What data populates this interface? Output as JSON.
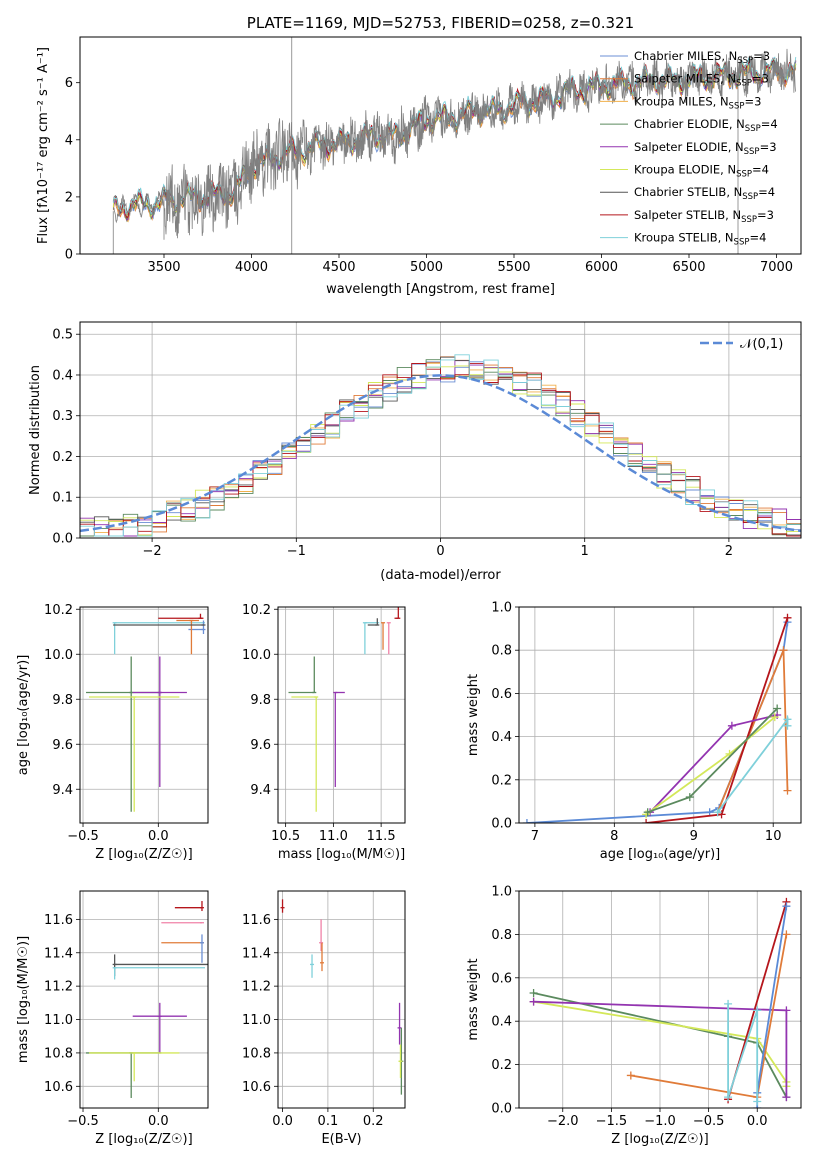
{
  "chart_data": [
    {
      "id": "spectrum",
      "type": "line",
      "title": "PLATE=1169, MJD=52753, FIBERID=0258, z=0.321",
      "xlabel": "wavelength [Angstrom, rest frame]",
      "ylabel": "Flux [f_λ10^-17 erg cm^-2 s^-1 A^-1]",
      "xlim": [
        3020,
        7140
      ],
      "ylim": [
        0,
        7.6
      ],
      "xticks": [
        3500,
        4000,
        4500,
        5000,
        5500,
        6000,
        6500,
        7000
      ],
      "yticks": [
        0,
        2,
        4,
        6
      ],
      "grid": false,
      "legend_position": "upper-right",
      "data_color": "#808080",
      "continuum": {
        "x": [
          3210,
          3300,
          3400,
          3480,
          3500,
          3600,
          3700,
          3800,
          3850,
          3900,
          3950,
          4000,
          4100,
          4200,
          4300,
          4400,
          4500,
          4600,
          4700,
          4800,
          4900,
          5000,
          5100,
          5200,
          5300,
          5400,
          5500,
          5600,
          5700,
          5800,
          5900,
          6000,
          6100,
          6200,
          6300,
          6400,
          6500,
          6600,
          6700,
          6800,
          6900,
          7000,
          7100
        ],
        "y": [
          1.5,
          1.7,
          1.75,
          1.8,
          1.85,
          1.95,
          2.0,
          2.05,
          2.15,
          2.2,
          2.6,
          3.1,
          3.3,
          3.55,
          3.65,
          3.8,
          3.9,
          4.0,
          4.15,
          4.1,
          4.3,
          4.7,
          4.75,
          4.85,
          5.05,
          5.0,
          5.2,
          5.35,
          5.4,
          5.7,
          5.75,
          5.9,
          5.95,
          6.0,
          6.1,
          6.05,
          6.15,
          6.2,
          6.25,
          6.3,
          6.35,
          6.4,
          6.45
        ]
      },
      "series": [
        {
          "name": "Chabrier MILES, N_SSP=3",
          "color": "#6b8fd4"
        },
        {
          "name": "Salpeter MILES, N_SSP=3",
          "color": "#e07b39"
        },
        {
          "name": "Kroupa MILES, N_SSP=3",
          "color": "#f1b04c"
        },
        {
          "name": "Chabrier ELODIE, N_SSP=4",
          "color": "#5b8a5e"
        },
        {
          "name": "Salpeter ELODIE, N_SSP=3",
          "color": "#9334b0"
        },
        {
          "name": "Kroupa ELODIE, N_SSP=4",
          "color": "#d4e85a"
        },
        {
          "name": "Chabrier STELIB, N_SSP=4",
          "color": "#555555"
        },
        {
          "name": "Salpeter STELIB, N_SSP=3",
          "color": "#b5161c"
        },
        {
          "name": "Kroupa STELIB, N_SSP=4",
          "color": "#7fd0da"
        }
      ]
    },
    {
      "id": "residuals",
      "type": "line",
      "xlabel": "(data-model)/error",
      "ylabel": "Normed distribution",
      "xlim": [
        -2.5,
        2.5
      ],
      "ylim": [
        0,
        0.53
      ],
      "xticks": [
        -2,
        -1,
        0,
        1,
        2
      ],
      "yticks": [
        0.0,
        0.1,
        0.2,
        0.3,
        0.4,
        0.5
      ],
      "grid": true,
      "legend_position": "upper-right",
      "legend_label": "𝒩(0,1)",
      "gaussian_color": "#5b8ad6",
      "bin_width": 0.1
    },
    {
      "id": "age-vs-Z",
      "type": "scatter",
      "xlabel": "Z [log10(Z/Z☉)]",
      "ylabel": "age  [log10(age/yr)]",
      "xlim": [
        -0.52,
        0.33
      ],
      "ylim": [
        9.25,
        10.21
      ],
      "xticks": [
        -0.5,
        0.0
      ],
      "yticks": [
        9.4,
        9.6,
        9.8,
        10.0,
        10.2
      ],
      "grid": true,
      "points": [
        {
          "x": -0.29,
          "y": 10.14,
          "xerr": [
            0.0,
            0.6
          ],
          "yerr": [
            0.14,
            0.0
          ],
          "color": "#7fd0da"
        },
        {
          "x": 0.28,
          "y": 10.16,
          "xerr": [
            0.28,
            0.02
          ],
          "yerr": [
            0.0,
            0.02
          ],
          "color": "#b5161c"
        },
        {
          "x": 0.3,
          "y": 10.11,
          "xerr": [
            0.1,
            0.0
          ],
          "yerr": [
            0.02,
            0.04
          ],
          "color": "#6b8fd4"
        },
        {
          "x": 0.22,
          "y": 10.15,
          "xerr": [
            0.1,
            0.05
          ],
          "yerr": [
            0.15,
            0.0
          ],
          "color": "#e07b39"
        },
        {
          "x": 0.3,
          "y": 10.13,
          "xerr": [
            0.6,
            0.0
          ],
          "yerr": [
            0.0,
            0.0
          ],
          "color": "#555555"
        },
        {
          "x": -0.18,
          "y": 9.83,
          "xerr": [
            0.3,
            0.2
          ],
          "yerr": [
            0.53,
            0.16
          ],
          "color": "#5b8a5e"
        },
        {
          "x": 0.01,
          "y": 9.83,
          "xerr": [
            0.18,
            0.18
          ],
          "yerr": [
            0.42,
            0.16
          ],
          "color": "#9334b0"
        },
        {
          "x": -0.16,
          "y": 9.81,
          "xerr": [
            0.3,
            0.3
          ],
          "yerr": [
            0.51,
            0.0
          ],
          "color": "#d4e85a"
        }
      ]
    },
    {
      "id": "age-vs-mass",
      "type": "scatter",
      "xlabel": "mass [log10(M/M☉)]",
      "ylabel": "",
      "xlim": [
        10.42,
        11.75
      ],
      "ylim": [
        9.25,
        10.21
      ],
      "xticks": [
        10.5,
        11.0,
        11.5
      ],
      "yticks": [
        9.4,
        9.6,
        9.8,
        10.0,
        10.2
      ],
      "grid": true,
      "points": [
        {
          "x": 11.33,
          "y": 10.14,
          "xerr": [
            0.0,
            0.15
          ],
          "yerr": [
            0.14,
            0.0
          ],
          "color": "#7fd0da"
        },
        {
          "x": 11.68,
          "y": 10.16,
          "xerr": [
            0.04,
            0.0
          ],
          "yerr": [
            0.0,
            0.05
          ],
          "color": "#b5161c"
        },
        {
          "x": 11.46,
          "y": 10.13,
          "xerr": [
            0.1,
            0.0
          ],
          "yerr": [
            0.0,
            0.03
          ],
          "color": "#555555"
        },
        {
          "x": 11.52,
          "y": 10.14,
          "xerr": [
            0.0,
            0.0
          ],
          "yerr": [
            0.12,
            0.0
          ],
          "color": "#e07b39"
        },
        {
          "x": 11.58,
          "y": 10.14,
          "xerr": [
            0.0,
            0.0
          ],
          "yerr": [
            0.14,
            0.0
          ],
          "color": "#f082a8"
        },
        {
          "x": 10.8,
          "y": 9.83,
          "xerr": [
            0.27,
            0.0
          ],
          "yerr": [
            0.0,
            0.16
          ],
          "color": "#5b8a5e"
        },
        {
          "x": 11.02,
          "y": 9.83,
          "xerr": [
            0.0,
            0.1
          ],
          "yerr": [
            0.42,
            0.0
          ],
          "color": "#9334b0"
        },
        {
          "x": 10.82,
          "y": 9.81,
          "xerr": [
            0.26,
            0.0
          ],
          "yerr": [
            0.51,
            0.0
          ],
          "color": "#d4e85a"
        }
      ]
    },
    {
      "id": "massweight-vs-age",
      "type": "line",
      "xlabel": "age  [log10(age/yr)]",
      "ylabel": "mass weight",
      "xlim": [
        6.8,
        10.35
      ],
      "ylim": [
        0,
        1
      ],
      "xticks": [
        7,
        8,
        9,
        10
      ],
      "yticks": [
        0.0,
        0.2,
        0.4,
        0.6,
        0.8,
        1.0
      ],
      "grid": true,
      "series": [
        {
          "color": "#5b8ad6",
          "x": [
            6.9,
            9.2,
            9.32,
            10.13,
            10.18
          ],
          "y": [
            0.0,
            0.05,
            0.07,
            0.8,
            0.93
          ]
        },
        {
          "color": "#e07b39",
          "x": [
            9.3,
            10.13,
            10.18
          ],
          "y": [
            0.05,
            0.8,
            0.15
          ]
        },
        {
          "color": "#b5161c",
          "x": [
            8.4,
            9.35,
            10.18
          ],
          "y": [
            0.0,
            0.04,
            0.95
          ]
        },
        {
          "color": "#9334b0",
          "x": [
            8.45,
            9.48,
            10.05
          ],
          "y": [
            0.05,
            0.45,
            0.5
          ]
        },
        {
          "color": "#d4e85a",
          "x": [
            8.4,
            9.45,
            10.02
          ],
          "y": [
            0.04,
            0.32,
            0.49
          ]
        },
        {
          "color": "#5b8a5e",
          "x": [
            8.42,
            8.95,
            10.05
          ],
          "y": [
            0.05,
            0.12,
            0.53
          ]
        },
        {
          "color": "#7fd0da",
          "x": [
            9.3,
            10.18,
            10.18
          ],
          "y": [
            0.05,
            0.48,
            0.45
          ]
        }
      ]
    },
    {
      "id": "mass-vs-Z",
      "type": "scatter",
      "xlabel": "Z [log10(Z/Z☉)]",
      "ylabel": "mass [log10(M/M☉)]",
      "xlim": [
        -0.52,
        0.33
      ],
      "ylim": [
        10.47,
        11.77
      ],
      "xticks": [
        -0.5,
        0.0
      ],
      "yticks": [
        10.6,
        10.8,
        11.0,
        11.2,
        11.4,
        11.6
      ],
      "grid": true,
      "points": [
        {
          "x": 0.29,
          "y": 11.67,
          "xerr": [
            0.18,
            0.0
          ],
          "yerr": [
            0.02,
            0.04
          ],
          "color": "#b5161c"
        },
        {
          "x": 0.29,
          "y": 11.58,
          "xerr": [
            0.27,
            0.0
          ],
          "yerr": [
            0.0,
            0.0
          ],
          "color": "#f082a8"
        },
        {
          "x": 0.29,
          "y": 11.46,
          "xerr": [
            0.27,
            0.0
          ],
          "yerr": [
            0.0,
            0.0
          ],
          "color": "#e07b39"
        },
        {
          "x": 0.29,
          "y": 11.46,
          "xerr": [
            0.0,
            0.0
          ],
          "yerr": [
            0.12,
            0.05
          ],
          "color": "#6b8fd4"
        },
        {
          "x": -0.29,
          "y": 11.33,
          "xerr": [
            0.0,
            0.62
          ],
          "yerr": [
            0.07,
            0.06
          ],
          "color": "#555555"
        },
        {
          "x": -0.29,
          "y": 11.31,
          "xerr": [
            0.0,
            0.6
          ],
          "yerr": [
            0.07,
            0.0
          ],
          "color": "#7fd0da"
        },
        {
          "x": 0.01,
          "y": 11.02,
          "xerr": [
            0.18,
            0.18
          ],
          "yerr": [
            0.22,
            0.08
          ],
          "color": "#9334b0"
        },
        {
          "x": -0.18,
          "y": 10.8,
          "xerr": [
            0.3,
            0.2
          ],
          "yerr": [
            0.27,
            0.0
          ],
          "color": "#5b8a5e"
        },
        {
          "x": -0.16,
          "y": 10.8,
          "xerr": [
            0.3,
            0.3
          ],
          "yerr": [
            0.17,
            0.0
          ],
          "color": "#d4e85a"
        }
      ]
    },
    {
      "id": "mass-vs-ebv",
      "type": "scatter",
      "xlabel": "E(B-V)",
      "ylabel": "",
      "xlim": [
        -0.01,
        0.27
      ],
      "ylim": [
        10.47,
        11.77
      ],
      "xticks": [
        0.0,
        0.1,
        0.2
      ],
      "yticks": [
        10.6,
        10.8,
        11.0,
        11.2,
        11.4,
        11.6
      ],
      "grid": true,
      "points": [
        {
          "x": 0.0,
          "y": 11.67,
          "xerr": [
            0.0,
            0.0
          ],
          "yerr": [
            0.03,
            0.05
          ],
          "color": "#b5161c"
        },
        {
          "x": 0.085,
          "y": 11.46,
          "xerr": [
            0.0,
            0.0
          ],
          "yerr": [
            0.05,
            0.14
          ],
          "color": "#f082a8"
        },
        {
          "x": 0.087,
          "y": 11.34,
          "xerr": [
            0.0,
            0.0
          ],
          "yerr": [
            0.05,
            0.12
          ],
          "color": "#e07b39"
        },
        {
          "x": 0.065,
          "y": 11.33,
          "xerr": [
            0.0,
            0.0
          ],
          "yerr": [
            0.08,
            0.06
          ],
          "color": "#7fd0da"
        },
        {
          "x": 0.258,
          "y": 10.95,
          "xerr": [
            0.0,
            0.0
          ],
          "yerr": [
            0.1,
            0.15
          ],
          "color": "#9334b0"
        },
        {
          "x": 0.262,
          "y": 10.75,
          "xerr": [
            0.0,
            0.0
          ],
          "yerr": [
            0.2,
            0.2
          ],
          "color": "#5b8a5e"
        },
        {
          "x": 0.26,
          "y": 10.75,
          "xerr": [
            0.0,
            0.0
          ],
          "yerr": [
            0.1,
            0.1
          ],
          "color": "#d4e85a"
        }
      ]
    },
    {
      "id": "massweight-vs-Z",
      "type": "line",
      "xlabel": "Z [log10(Z/Z☉)]",
      "ylabel": "mass weight",
      "xlim": [
        -2.45,
        0.45
      ],
      "ylim": [
        0,
        1
      ],
      "xticks": [
        -2.0,
        -1.5,
        -1.0,
        -0.5,
        0.0
      ],
      "yticks": [
        0.0,
        0.2,
        0.4,
        0.6,
        0.8,
        1.0
      ],
      "grid": true,
      "series": [
        {
          "color": "#5b8a5e",
          "x": [
            -2.3,
            -0.3,
            0.0,
            0.3
          ],
          "y": [
            0.53,
            0.33,
            0.3,
            0.05
          ]
        },
        {
          "color": "#d4e85a",
          "x": [
            -2.3,
            0.0,
            0.3,
            0.3
          ],
          "y": [
            0.49,
            0.32,
            0.12,
            0.1
          ]
        },
        {
          "color": "#9334b0",
          "x": [
            -2.3,
            0.3,
            0.3
          ],
          "y": [
            0.49,
            0.45,
            0.05
          ]
        },
        {
          "color": "#e07b39",
          "x": [
            -1.3,
            0.0,
            0.3
          ],
          "y": [
            0.15,
            0.05,
            0.8
          ]
        },
        {
          "color": "#b5161c",
          "x": [
            -0.3,
            0.3
          ],
          "y": [
            0.04,
            0.95
          ]
        },
        {
          "color": "#5b8ad6",
          "x": [
            0.0,
            0.0,
            0.3
          ],
          "y": [
            0.0,
            0.07,
            0.93
          ]
        },
        {
          "color": "#7fd0da",
          "x": [
            -0.3,
            -0.3,
            0.0,
            0.0
          ],
          "y": [
            0.48,
            0.05,
            0.45,
            0.03
          ]
        }
      ]
    }
  ]
}
